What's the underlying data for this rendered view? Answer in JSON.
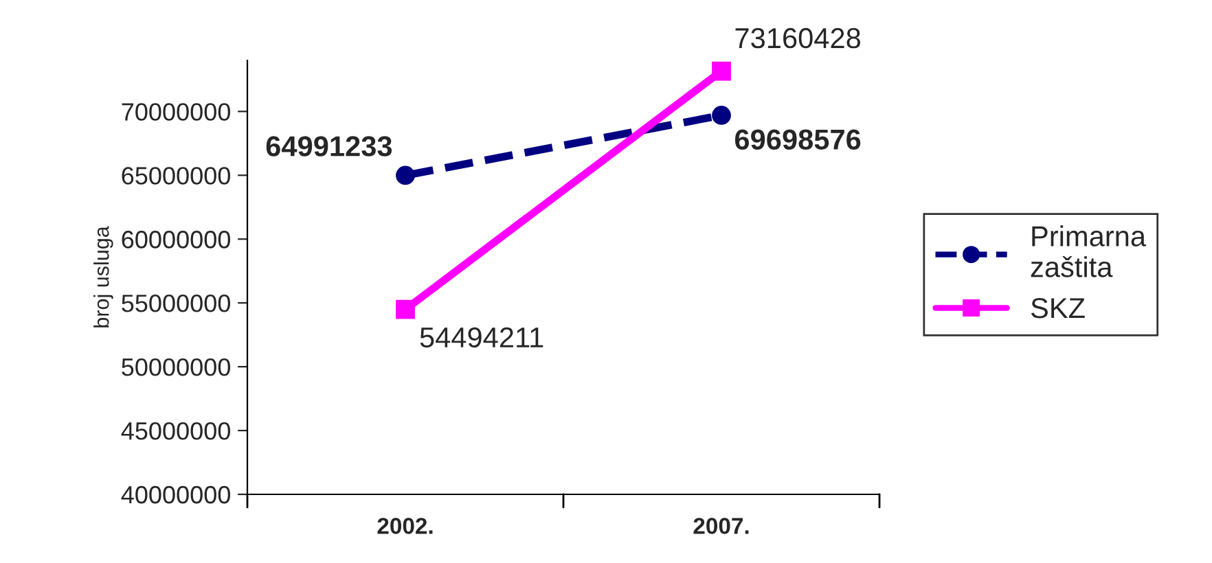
{
  "chart_data": {
    "type": "line",
    "ylabel": "broj usluga",
    "categories": [
      "2002.",
      "2007."
    ],
    "series": [
      {
        "name": "Primarna zaštita",
        "color": "#000080",
        "values": [
          64991233,
          69698576
        ],
        "marker": "circle",
        "line_style": "dashed"
      },
      {
        "name": "SKZ",
        "color": "#ff00ff",
        "values": [
          54494211,
          73160428
        ],
        "marker": "square",
        "line_style": "solid"
      }
    ],
    "ylim": [
      40000000,
      74000000
    ],
    "yticks": [
      40000000,
      45000000,
      50000000,
      55000000,
      60000000,
      65000000,
      70000000
    ],
    "data_labels": true,
    "legend": "right",
    "grid": false
  }
}
